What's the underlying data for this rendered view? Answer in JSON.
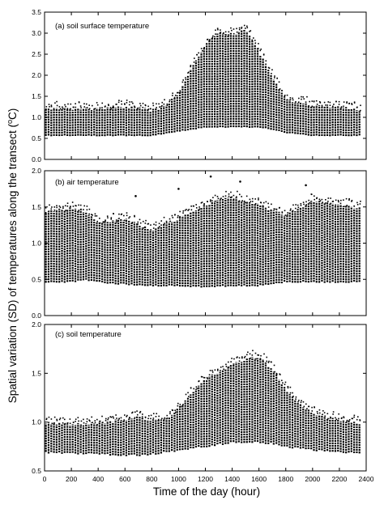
{
  "figure": {
    "ylabel": "Spatial variation (SD) of temperatures along the transect (°C)",
    "ylabel_parts": {
      "before": "Spatial variation (SD) of temperatures along the transect (",
      "superscript": "o",
      "after": "C)"
    },
    "xlabel": "Time of the day (hour)"
  },
  "chart_data": [
    {
      "type": "scatter",
      "title": "(a) soil surface temperature",
      "xlim": [
        0,
        2400
      ],
      "ylim": [
        0.0,
        3.5
      ],
      "x_ticks": [
        0,
        200,
        400,
        600,
        800,
        1000,
        1200,
        1400,
        1600,
        1800,
        2000,
        2200,
        2400
      ],
      "y_ticks": [
        0.0,
        0.5,
        1.0,
        1.5,
        2.0,
        2.5,
        3.0,
        3.5
      ],
      "y_tick_labels": [
        "0.0",
        "0.5",
        "1.0",
        "1.5",
        "2.0",
        "2.5",
        "3.0",
        "3.5"
      ],
      "x_tick_labels": [],
      "envelope_hours": [
        0,
        200,
        400,
        600,
        700,
        800,
        900,
        1000,
        1100,
        1200,
        1300,
        1400,
        1500,
        1600,
        1700,
        1800,
        2000,
        2200,
        2350
      ],
      "envelope_max": [
        1.22,
        1.24,
        1.22,
        1.28,
        1.26,
        1.2,
        1.3,
        1.6,
        2.2,
        2.75,
        3.05,
        3.0,
        3.1,
        2.6,
        2.0,
        1.45,
        1.3,
        1.28,
        1.2
      ],
      "envelope_min": [
        0.55,
        0.55,
        0.55,
        0.55,
        0.55,
        0.55,
        0.6,
        0.65,
        0.7,
        0.75,
        0.75,
        0.75,
        0.75,
        0.75,
        0.7,
        0.62,
        0.55,
        0.55,
        0.55
      ]
    },
    {
      "type": "scatter",
      "title": "(b) air temperature",
      "xlim": [
        0,
        2400
      ],
      "ylim": [
        0.0,
        2.0
      ],
      "x_ticks": [
        0,
        200,
        400,
        600,
        800,
        1000,
        1200,
        1400,
        1600,
        1800,
        2000,
        2200,
        2400
      ],
      "y_ticks": [
        0.0,
        0.5,
        1.0,
        1.5,
        2.0
      ],
      "y_tick_labels": [
        "0.0",
        "0.5",
        "1.0",
        "1.5",
        "2.0"
      ],
      "x_tick_labels": [],
      "envelope_hours": [
        0,
        200,
        300,
        400,
        600,
        800,
        1000,
        1200,
        1400,
        1600,
        1800,
        2000,
        2200,
        2350
      ],
      "envelope_max": [
        1.45,
        1.5,
        1.45,
        1.3,
        1.35,
        1.2,
        1.35,
        1.55,
        1.65,
        1.55,
        1.4,
        1.6,
        1.55,
        1.5
      ],
      "envelope_min": [
        0.45,
        0.45,
        0.48,
        0.45,
        0.42,
        0.4,
        0.4,
        0.38,
        0.4,
        0.4,
        0.45,
        0.45,
        0.45,
        0.45
      ],
      "outliers": [
        [
          1240,
          1.92
        ],
        [
          1460,
          1.85
        ],
        [
          1000,
          1.75
        ],
        [
          1950,
          1.8
        ],
        [
          680,
          1.65
        ]
      ]
    },
    {
      "type": "scatter",
      "title": "(c) soil temperature",
      "xlim": [
        0,
        2400
      ],
      "ylim": [
        0.5,
        2.0
      ],
      "x_ticks": [
        0,
        200,
        400,
        600,
        800,
        1000,
        1200,
        1400,
        1600,
        1800,
        2000,
        2200,
        2400
      ],
      "y_ticks": [
        0.5,
        1.0,
        1.5,
        2.0
      ],
      "y_tick_labels": [
        "0.5",
        "1.0",
        "1.5",
        "2.0"
      ],
      "x_tick_labels": [
        "0",
        "200",
        "400",
        "600",
        "800",
        "1000",
        "1200",
        "1400",
        "1600",
        "1800",
        "2000",
        "2200",
        "2400"
      ],
      "envelope_hours": [
        0,
        200,
        400,
        600,
        700,
        800,
        900,
        1000,
        1100,
        1200,
        1300,
        1400,
        1500,
        1600,
        1700,
        1800,
        1900,
        2000,
        2200,
        2350
      ],
      "envelope_max": [
        1.0,
        0.99,
        1.0,
        1.04,
        1.06,
        1.03,
        1.04,
        1.15,
        1.3,
        1.45,
        1.53,
        1.6,
        1.66,
        1.68,
        1.55,
        1.35,
        1.2,
        1.1,
        1.03,
        1.0
      ],
      "envelope_min": [
        0.68,
        0.67,
        0.66,
        0.65,
        0.65,
        0.66,
        0.68,
        0.7,
        0.72,
        0.74,
        0.76,
        0.78,
        0.78,
        0.78,
        0.77,
        0.74,
        0.72,
        0.7,
        0.68,
        0.67
      ]
    }
  ]
}
